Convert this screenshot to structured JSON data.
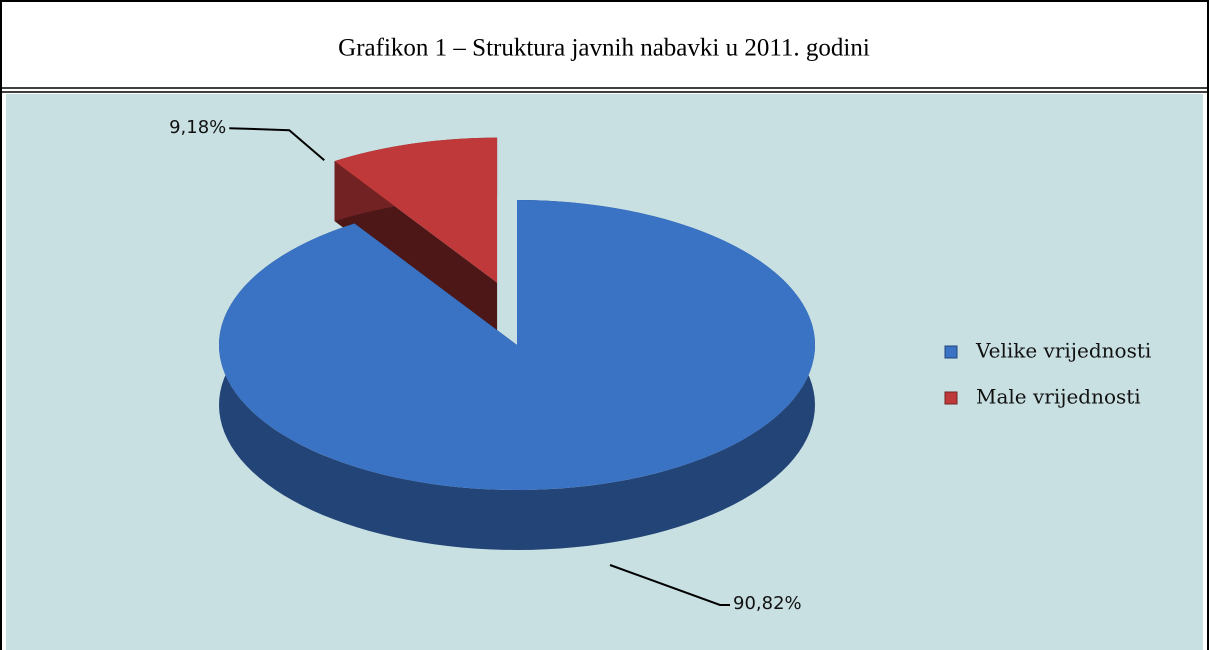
{
  "chart_data": {
    "type": "pie",
    "title": "Grafikon 1 – Struktura javnih nabavki u 2011. godini",
    "categories": [
      "Velike vrijednosti",
      "Male vrijednosti"
    ],
    "values": [
      90.82,
      9.18
    ],
    "value_labels": [
      "90,82%",
      "9,18%"
    ],
    "colors": [
      "#3a72c4",
      "#c0393a"
    ],
    "legend": "right"
  }
}
